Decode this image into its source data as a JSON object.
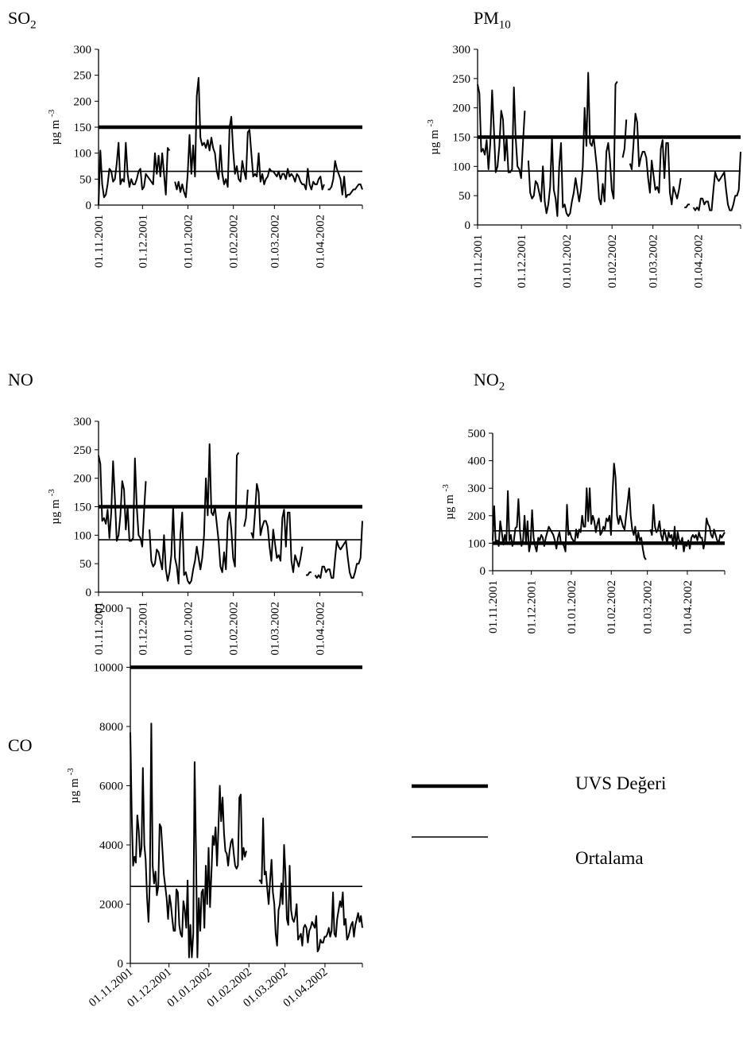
{
  "legend": {
    "uvs_label": "UVS Değeri",
    "avg_label": "Ortalama"
  },
  "chart_data": [
    {
      "type": "line",
      "title_main": "SO",
      "title_sub": "2",
      "ylabel": "µg m-3",
      "ylim": [
        0,
        300
      ],
      "ytick_step": 50,
      "x_start": "2001-11-01",
      "x_end": "2002-04-30",
      "xtick_labels": [
        "01.11.2001",
        "01.12.2001",
        "01.01.2002",
        "01.02.2002",
        "01.03.2002",
        "01.04.2002"
      ],
      "xlabel_rotate": -90,
      "series": [
        {
          "name": "UVS Değeri",
          "kind": "limit",
          "value": 150
        },
        {
          "name": "Ortalama",
          "kind": "mean",
          "value": 65
        },
        {
          "kind": "daily",
          "values": [
            0,
            105,
            40,
            15,
            20,
            40,
            70,
            65,
            45,
            50,
            80,
            120,
            40,
            50,
            45,
            120,
            60,
            35,
            50,
            40,
            40,
            50,
            65,
            70,
            30,
            35,
            60,
            55,
            50,
            45,
            40,
            100,
            60,
            95,
            55,
            100,
            60,
            20,
            110,
            105,
            null,
            null,
            45,
            30,
            45,
            25,
            40,
            25,
            15,
            60,
            135,
            60,
            115,
            55,
            210,
            245,
            130,
            115,
            120,
            110,
            125,
            105,
            130,
            110,
            100,
            65,
            50,
            115,
            60,
            40,
            50,
            35,
            150,
            170,
            105,
            60,
            75,
            50,
            45,
            85,
            65,
            50,
            140,
            145,
            100,
            55,
            60,
            55,
            100,
            45,
            60,
            40,
            50,
            55,
            70,
            65,
            65,
            60,
            55,
            65,
            50,
            60,
            60,
            50,
            70,
            55,
            60,
            55,
            45,
            60,
            55,
            45,
            40,
            40,
            30,
            70,
            40,
            30,
            45,
            40,
            40,
            50,
            55,
            30,
            40,
            null,
            30,
            30,
            35,
            50,
            85,
            70,
            60,
            50,
            20,
            55,
            15,
            20,
            20,
            25,
            30,
            30,
            35,
            40,
            40,
            30
          ]
        }
      ]
    },
    {
      "type": "line",
      "title_main": "PM",
      "title_sub": "10",
      "ylabel": "µg m-3",
      "ylim": [
        0,
        300
      ],
      "ytick_step": 50,
      "x_start": "2001-11-01",
      "x_end": "2002-04-30",
      "xtick_labels": [
        "01.11.2001",
        "01.12.2001",
        "01.01.2002",
        "01.02.2002",
        "01.03.2002",
        "01.04.2002"
      ],
      "xlabel_rotate": -90,
      "series": [
        {
          "name": "UVS Değeri",
          "kind": "limit",
          "value": 150
        },
        {
          "name": "Ortalama",
          "kind": "mean",
          "value": 92
        },
        {
          "kind": "daily",
          "values": [
            240,
            225,
            125,
            130,
            120,
            145,
            95,
            140,
            230,
            165,
            90,
            100,
            135,
            195,
            180,
            110,
            150,
            90,
            90,
            95,
            235,
            150,
            100,
            95,
            80,
            140,
            195,
            null,
            110,
            55,
            45,
            50,
            75,
            70,
            55,
            40,
            100,
            40,
            20,
            35,
            65,
            150,
            60,
            45,
            15,
            100,
            140,
            30,
            35,
            20,
            15,
            20,
            40,
            55,
            80,
            60,
            40,
            60,
            100,
            200,
            135,
            260,
            140,
            135,
            150,
            120,
            90,
            45,
            35,
            70,
            40,
            125,
            140,
            110,
            60,
            45,
            240,
            245,
            null,
            null,
            115,
            130,
            180,
            null,
            105,
            95,
            140,
            190,
            175,
            100,
            115,
            125,
            125,
            115,
            80,
            55,
            110,
            85,
            60,
            65,
            55,
            130,
            145,
            80,
            140,
            140,
            55,
            35,
            65,
            55,
            45,
            60,
            80,
            null,
            30,
            30,
            35,
            35,
            null,
            30,
            25,
            30,
            25,
            45,
            45,
            35,
            40,
            40,
            25,
            25,
            60,
            90,
            80,
            75,
            80,
            85,
            90,
            60,
            35,
            25,
            25,
            35,
            50,
            50,
            60,
            125
          ]
        }
      ]
    },
    {
      "type": "line",
      "title_main": "NO",
      "title_sub": "",
      "ylabel": "µg m-3",
      "ylim": [
        0,
        300
      ],
      "ytick_step": 50,
      "x_start": "2001-11-01",
      "x_end": "2002-04-30",
      "xtick_labels": [
        "01.11.2001",
        "01.12.2001",
        "01.01.2002",
        "01.02.2002",
        "01.03.2002",
        "01.04.2002"
      ],
      "xlabel_rotate": -90,
      "series": [
        {
          "name": "UVS Değeri",
          "kind": "limit",
          "value": 150
        },
        {
          "name": "Ortalama",
          "kind": "mean",
          "value": 92
        },
        {
          "kind": "daily",
          "values": [
            240,
            225,
            125,
            130,
            120,
            145,
            95,
            140,
            230,
            165,
            90,
            100,
            135,
            195,
            180,
            110,
            150,
            90,
            90,
            95,
            235,
            150,
            100,
            95,
            80,
            140,
            195,
            null,
            110,
            55,
            45,
            50,
            75,
            70,
            55,
            40,
            100,
            40,
            20,
            35,
            65,
            150,
            60,
            45,
            15,
            100,
            140,
            30,
            35,
            20,
            15,
            20,
            40,
            55,
            80,
            60,
            40,
            60,
            100,
            200,
            135,
            260,
            140,
            135,
            150,
            120,
            90,
            45,
            35,
            70,
            40,
            125,
            140,
            110,
            60,
            45,
            240,
            245,
            null,
            null,
            115,
            130,
            180,
            null,
            105,
            95,
            140,
            190,
            175,
            100,
            115,
            125,
            125,
            115,
            80,
            55,
            110,
            85,
            60,
            65,
            55,
            130,
            145,
            80,
            140,
            140,
            55,
            35,
            65,
            55,
            45,
            60,
            80,
            null,
            30,
            30,
            35,
            35,
            null,
            30,
            25,
            30,
            25,
            45,
            45,
            35,
            40,
            40,
            25,
            25,
            60,
            90,
            80,
            75,
            80,
            85,
            90,
            60,
            35,
            25,
            25,
            35,
            50,
            50,
            60,
            125
          ]
        }
      ]
    },
    {
      "type": "line",
      "title_main": "NO",
      "title_sub": "2",
      "ylabel": "µg m-3",
      "ylim": [
        0,
        500
      ],
      "ytick_step": 100,
      "x_start": "2001-11-01",
      "x_end": "2002-04-30",
      "xtick_labels": [
        "01.11.2001",
        "01.12.2001",
        "01.01.2002",
        "01.02.2002",
        "01.03.2002",
        "01.04.2002"
      ],
      "xlabel_rotate": -90,
      "series": [
        {
          "name": "UVS Değeri",
          "kind": "limit",
          "value": 100
        },
        {
          "name": "Ortalama",
          "kind": "mean",
          "value": 145
        },
        {
          "kind": "daily",
          "values": [
            110,
            235,
            100,
            110,
            90,
            180,
            140,
            95,
            130,
            100,
            290,
            110,
            130,
            90,
            110,
            155,
            160,
            260,
            140,
            90,
            110,
            200,
            100,
            180,
            70,
            100,
            220,
            120,
            90,
            70,
            120,
            110,
            130,
            120,
            90,
            120,
            140,
            160,
            150,
            140,
            130,
            110,
            80,
            120,
            140,
            100,
            100,
            90,
            70,
            240,
            130,
            140,
            120,
            110,
            100,
            150,
            120,
            150,
            140,
            200,
            160,
            160,
            300,
            180,
            300,
            170,
            200,
            180,
            140,
            170,
            190,
            130,
            140,
            160,
            150,
            190,
            180,
            200,
            130,
            280,
            390,
            340,
            200,
            170,
            200,
            180,
            160,
            150,
            200,
            250,
            300,
            200,
            150,
            130,
            160,
            100,
            140,
            110,
            120,
            80,
            50,
            40,
            null,
            null,
            150,
            130,
            240,
            160,
            140,
            150,
            180,
            130,
            110,
            150,
            130,
            100,
            140,
            120,
            130,
            90,
            160,
            80,
            140,
            110,
            100,
            120,
            70,
            100,
            90,
            110,
            80,
            120,
            130,
            120,
            130,
            110,
            140,
            120,
            120,
            80,
            110,
            190,
            170,
            160,
            130,
            120,
            150,
            130,
            110,
            100,
            130,
            120,
            130,
            140
          ]
        }
      ]
    },
    {
      "type": "line",
      "title_main": "CO",
      "title_sub": "",
      "ylabel": "µg m-3",
      "ylim": [
        0,
        12000
      ],
      "ytick_step": 2000,
      "x_start": "2001-11-01",
      "x_end": "2002-04-30",
      "xtick_labels": [
        "01.11.2001",
        "01.12.2001",
        "01.01.2002",
        "01.02.2002",
        "01.03.2002",
        "01.04.2002"
      ],
      "xlabel_rotate": -40,
      "series": [
        {
          "name": "UVS Değeri",
          "kind": "limit",
          "value": 10000
        },
        {
          "name": "Ortalama",
          "kind": "mean",
          "value": 2600
        },
        {
          "kind": "daily",
          "values": [
            7800,
            5000,
            3300,
            3600,
            3400,
            5000,
            4500,
            3600,
            3900,
            6600,
            4000,
            3500,
            2200,
            1400,
            2800,
            8100,
            3300,
            2700,
            3100,
            2300,
            2600,
            4700,
            4600,
            3800,
            3000,
            2600,
            2200,
            1500,
            2300,
            2000,
            1500,
            1100,
            1100,
            2500,
            2400,
            1300,
            1000,
            900,
            2100,
            1800,
            1200,
            2800,
            200,
            1300,
            200,
            1000,
            6800,
            3700,
            200,
            2200,
            1100,
            2400,
            2500,
            1200,
            3300,
            2000,
            3900,
            1900,
            3000,
            4300,
            4000,
            4600,
            3300,
            4500,
            6000,
            4800,
            5600,
            4400,
            3800,
            3700,
            3300,
            3800,
            4100,
            4200,
            3700,
            3300,
            3200,
            3300,
            5600,
            5700,
            3500,
            3900,
            3600,
            3800,
            null,
            null,
            null,
            null,
            null,
            null,
            null,
            null,
            2800,
            2800,
            2700,
            4900,
            3000,
            3100,
            2500,
            2000,
            2800,
            3500,
            2400,
            2000,
            1000,
            600,
            1800,
            2000,
            2700,
            2000,
            4000,
            3000,
            1500,
            1300,
            3300,
            1800,
            1500,
            1400,
            1600,
            2000,
            800,
            900,
            1000,
            600,
            1200,
            1300,
            1200,
            700,
            1100,
            1200,
            1400,
            1300,
            1200,
            1600,
            400,
            500,
            800,
            700,
            700,
            900,
            900,
            1000,
            1200,
            900,
            1100,
            2400,
            1000,
            900,
            1500,
            1800,
            2100,
            1900,
            2400,
            1300,
            1500,
            800,
            900,
            1100,
            1300,
            1400,
            900,
            1300,
            1500,
            1700,
            1400,
            1600,
            1200
          ]
        }
      ]
    }
  ]
}
